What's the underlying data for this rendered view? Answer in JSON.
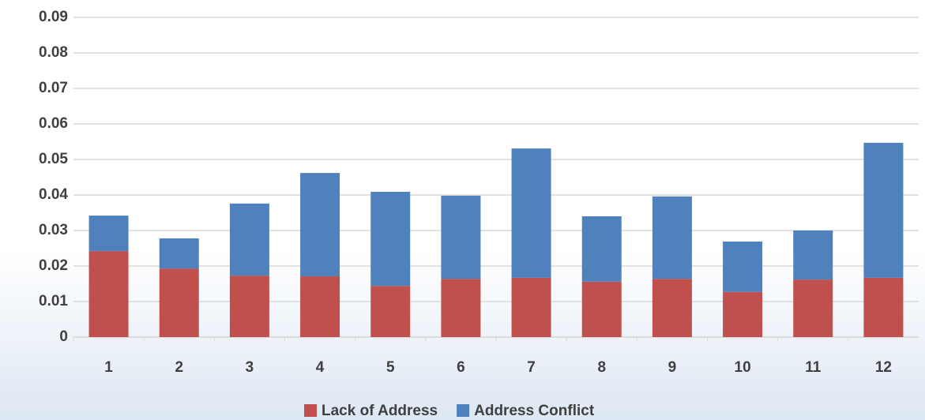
{
  "chart_data": {
    "type": "stacked_bar",
    "categories": [
      "1",
      "2",
      "3",
      "4",
      "5",
      "6",
      "7",
      "8",
      "9",
      "10",
      "11",
      "12"
    ],
    "series": [
      {
        "name": "Lack of Address",
        "color": "#c0504d",
        "values": [
          0.0242,
          0.0193,
          0.0173,
          0.0171,
          0.0144,
          0.0164,
          0.0167,
          0.0156,
          0.0164,
          0.0127,
          0.0162,
          0.0167
        ]
      },
      {
        "name": "Address Conflict",
        "color": "#4f81bd",
        "values": [
          0.01,
          0.0085,
          0.0203,
          0.0291,
          0.0265,
          0.0234,
          0.0364,
          0.0184,
          0.0232,
          0.0142,
          0.0138,
          0.038
        ]
      }
    ],
    "ylim": [
      0,
      0.09
    ],
    "yticks": [
      0,
      0.01,
      0.02,
      0.03,
      0.04,
      0.05,
      0.06,
      0.07,
      0.08,
      0.09
    ],
    "grid": true,
    "legend": "bottom"
  }
}
